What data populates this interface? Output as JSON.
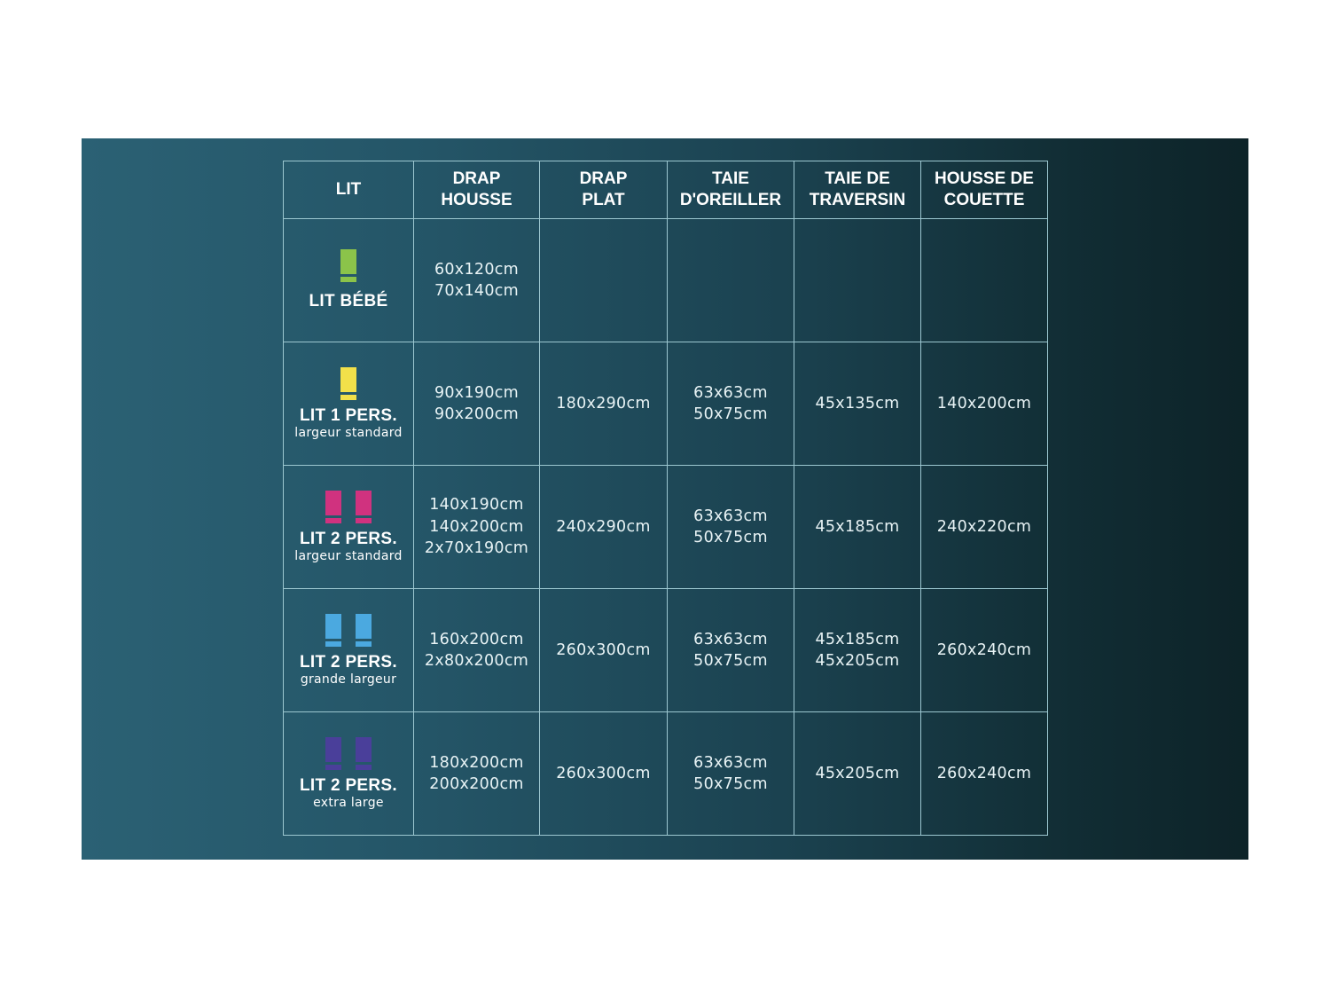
{
  "headers": [
    "LIT",
    "DRAP\nHOUSSE",
    "DRAP\nPLAT",
    "TAIE\nD'OREILLER",
    "TAIE DE\nTRAVERSIN",
    "HOUSSE DE\nCOUETTE"
  ],
  "rows": [
    {
      "label": "LIT BÉBÉ",
      "sub": "",
      "icon_color": "#8bc34a",
      "icon_count": 1,
      "cells": [
        "60x120cm\n70x140cm",
        "",
        "",
        "",
        ""
      ]
    },
    {
      "label": "LIT 1 PERS.",
      "sub": "largeur standard",
      "icon_color": "#f2e04a",
      "icon_count": 1,
      "cells": [
        "90x190cm\n90x200cm",
        "180x290cm",
        "63x63cm\n50x75cm",
        "45x135cm",
        "140x200cm"
      ]
    },
    {
      "label": "LIT 2 PERS.",
      "sub": "largeur standard",
      "icon_color": "#d0327f",
      "icon_count": 2,
      "cells": [
        "140x190cm\n140x200cm\n2x70x190cm",
        "240x290cm",
        "63x63cm\n50x75cm",
        "45x185cm",
        "240x220cm"
      ]
    },
    {
      "label": "LIT 2 PERS.",
      "sub": "grande largeur",
      "icon_color": "#4ba9e0",
      "icon_count": 2,
      "cells": [
        "160x200cm\n2x80x200cm",
        "260x300cm",
        "63x63cm\n50x75cm",
        "45x185cm\n45x205cm",
        "260x240cm"
      ]
    },
    {
      "label": "LIT 2 PERS.",
      "sub": "extra large",
      "icon_color": "#4a3f9a",
      "icon_count": 2,
      "cells": [
        "180x200cm\n200x200cm",
        "260x300cm",
        "63x63cm\n50x75cm",
        "45x205cm",
        "260x240cm"
      ]
    }
  ]
}
